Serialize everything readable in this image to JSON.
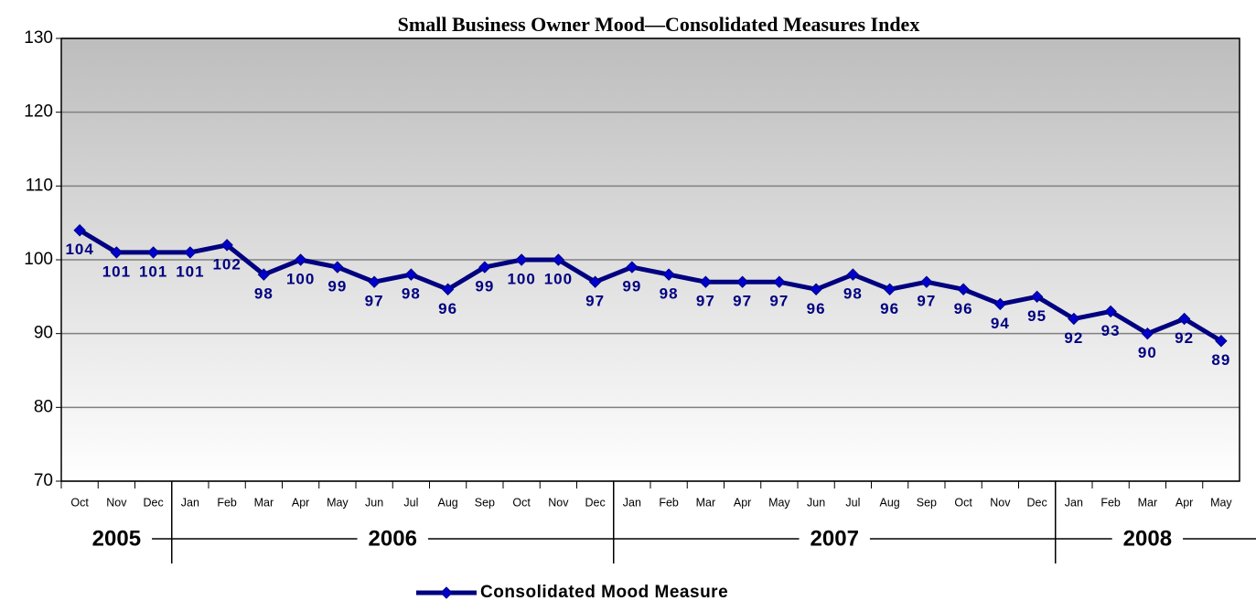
{
  "chart_data": {
    "type": "line",
    "title": "Small Business Owner Mood—Consolidated Measures Index",
    "groups": [
      {
        "label": "2005",
        "categories": [
          "Oct",
          "Nov",
          "Dec"
        ]
      },
      {
        "label": "2006",
        "categories": [
          "Jan",
          "Feb",
          "Mar",
          "Apr",
          "May",
          "Jun",
          "Jul",
          "Aug",
          "Sep",
          "Oct",
          "Nov",
          "Dec"
        ]
      },
      {
        "label": "2007",
        "categories": [
          "Jan",
          "Feb",
          "Mar",
          "Apr",
          "May",
          "Jun",
          "Jul",
          "Aug",
          "Sep",
          "Oct",
          "Nov",
          "Dec"
        ]
      },
      {
        "label": "2008",
        "categories": [
          "Jan",
          "Feb",
          "Mar",
          "Apr",
          "May"
        ]
      }
    ],
    "series": [
      {
        "name": "Consolidated Mood Measure",
        "color": "#000080",
        "marker_color": "#0000cc",
        "values": [
          104,
          101,
          101,
          101,
          102,
          98,
          100,
          99,
          97,
          98,
          96,
          99,
          100,
          100,
          97,
          99,
          98,
          97,
          97,
          97,
          96,
          98,
          96,
          97,
          96,
          94,
          95,
          92,
          93,
          90,
          92,
          89
        ]
      }
    ],
    "ylim": [
      70,
      130
    ],
    "yticks": [
      70,
      80,
      90,
      100,
      110,
      120,
      130
    ],
    "grid": true,
    "legend": "bottom"
  }
}
